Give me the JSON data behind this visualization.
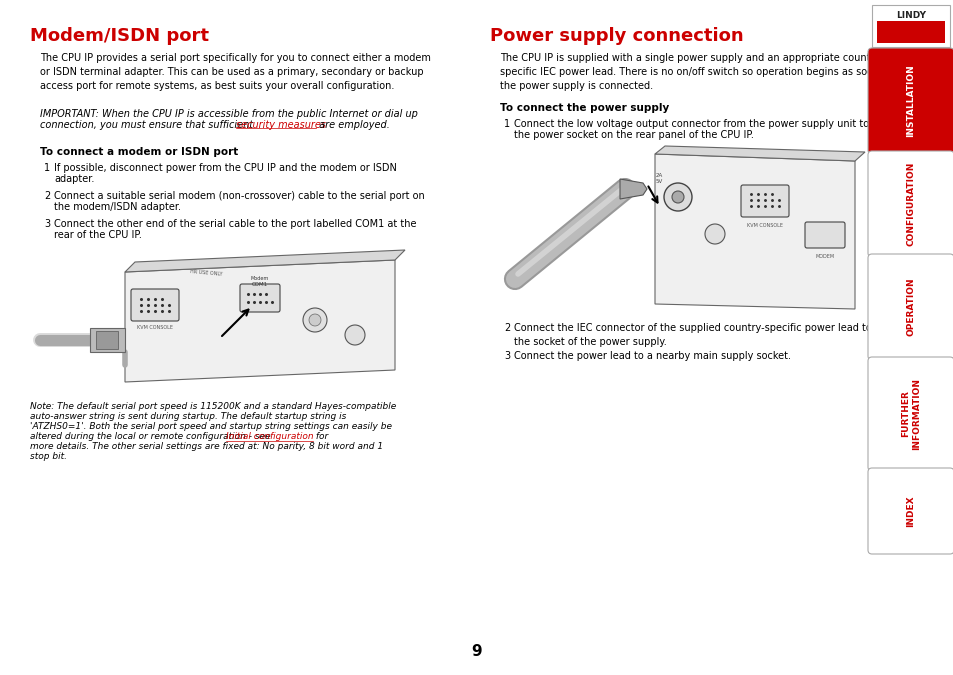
{
  "bg_color": "#ffffff",
  "text_color": "#000000",
  "red_color": "#cc0000",
  "sidebar_active_color": "#cc0000",
  "sidebar_inactive_bg": "#ffffff",
  "sidebar_text_color": "#cc0000",
  "left_title": "Modem/ISDN port",
  "right_title": "Power supply connection",
  "left_para1": "The CPU IP provides a serial port specifically for you to connect either a modem\nor ISDN terminal adapter. This can be used as a primary, secondary or backup\naccess port for remote systems, as best suits your overall configuration.",
  "left_subhead": "To connect a modem or ISDN port",
  "left_steps": [
    "If possible, disconnect power from the CPU IP and the modem or ISDN\nadapter.",
    "Connect a suitable serial modem (non-crossover) cable to the serial port on\nthe modem/ISDN adapter.",
    "Connect the other end of the serial cable to the port labelled COM1 at the\nrear of the CPU IP."
  ],
  "right_para1": "The CPU IP is supplied with a single power supply and an appropriate country-\nspecific IEC power lead. There is no on/off switch so operation begins as soon as\nthe power supply is connected.",
  "right_subhead": "To connect the power supply",
  "right_step1_line1": "Connect the low voltage output connector from the power supply unit to",
  "right_step1_line2": "the power socket on the rear panel of the CPU IP.",
  "right_step2": "Connect the IEC connector of the supplied country-specific power lead to\nthe socket of the power supply.",
  "right_step3": "Connect the power lead to a nearby main supply socket.",
  "sidebar_items": [
    "INSTALLATION",
    "CONFIGURATION",
    "OPERATION",
    "FURTHER\nINFORMATION",
    "INDEX"
  ],
  "sidebar_active_index": 0,
  "tab_heights": [
    100,
    100,
    100,
    108,
    80
  ],
  "page_number": "9",
  "lindy_logo_text": "LINDY",
  "lindy_box_color": "#cc0000"
}
